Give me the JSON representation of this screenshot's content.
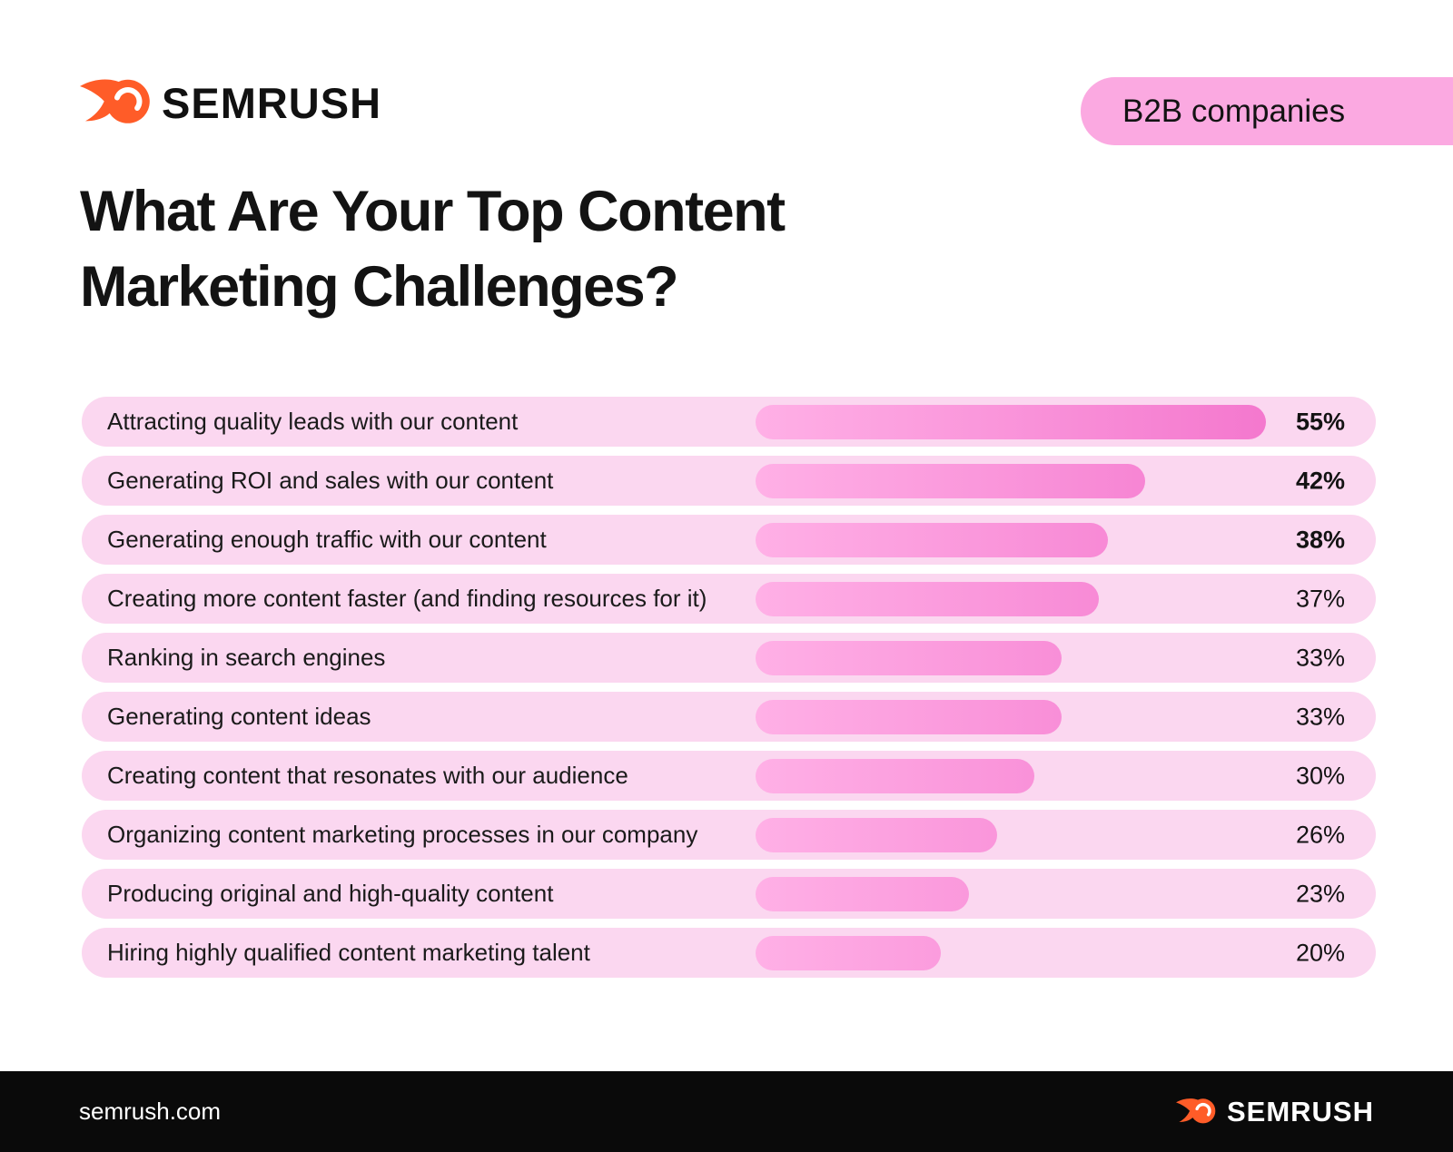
{
  "header": {
    "brand": "SEMRUSH",
    "badge": "B2B companies"
  },
  "title": {
    "line1": "What Are Your Top Content",
    "line2": "Marketing Challenges?"
  },
  "chart_data": {
    "type": "bar",
    "orientation": "horizontal",
    "title": "What Are Your Top Content Marketing Challenges?",
    "audience_badge": "B2B companies",
    "unit": "%",
    "grid": false,
    "legend": "none",
    "scale_max": 55,
    "emphasized_top_n": 3,
    "categories": [
      "Attracting quality leads with our content",
      "Generating ROI and sales with our content",
      "Generating enough traffic with our content",
      "Creating more content faster (and finding resources for it)",
      "Ranking in search engines",
      "Generating content ideas",
      "Creating content that resonates with our audience",
      "Organizing content marketing processes in our company",
      "Producing original and high-quality content",
      "Hiring highly qualified content marketing talent"
    ],
    "values": [
      55,
      42,
      38,
      37,
      33,
      33,
      30,
      26,
      23,
      20
    ],
    "value_labels": [
      "55%",
      "42%",
      "38%",
      "37%",
      "33%",
      "33%",
      "30%",
      "26%",
      "23%",
      "20%"
    ]
  },
  "footer": {
    "url": "semrush.com",
    "brand": "SEMRUSH"
  },
  "colors": {
    "accent_orange": "#FF5C28",
    "badge_pink": "#FBA9E1",
    "row_pink": "#FBD7F0",
    "bar_gradient_start": "#FFB0E6",
    "bar_gradient_end": "#F478CE",
    "footer_bg": "#0A0A0A",
    "text_dark": "#141414",
    "footer_text": "#FFFFFF",
    "page_bg": "#FFFFFF"
  }
}
